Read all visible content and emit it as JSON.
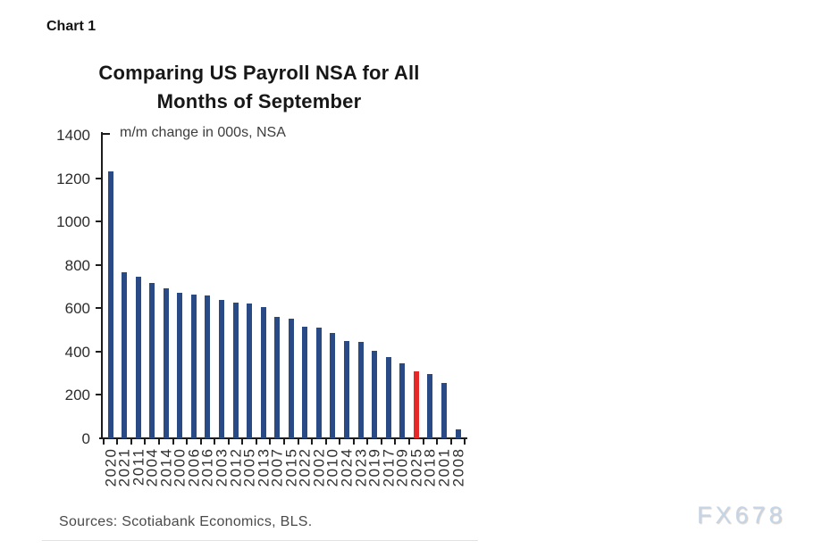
{
  "page": {
    "chart_label": "Chart 1",
    "sources": "Sources: Scotiabank Economics, BLS.",
    "watermark": "FX678"
  },
  "chart_data": {
    "type": "bar",
    "title": "Comparing US Payroll NSA for All Months of September",
    "subtitle": "m/m change in 000s, NSA",
    "xlabel": "",
    "ylabel": "",
    "categories": [
      "2020",
      "2021",
      "2011",
      "2004",
      "2014",
      "2000",
      "2006",
      "2016",
      "2003",
      "2012",
      "2005",
      "2013",
      "2007",
      "2015",
      "2022",
      "2002",
      "2010",
      "2024",
      "2023",
      "2019",
      "2017",
      "2009",
      "2025",
      "2018",
      "2001",
      "2008"
    ],
    "values": [
      1230,
      765,
      745,
      715,
      690,
      670,
      665,
      660,
      640,
      625,
      620,
      605,
      560,
      550,
      515,
      510,
      485,
      450,
      445,
      405,
      375,
      345,
      310,
      295,
      255,
      40
    ],
    "highlight_category": "2025",
    "bar_color": "#2a4a86",
    "highlight_color": "#e62828",
    "ylim": [
      0,
      1400
    ],
    "y_ticks": [
      0,
      200,
      400,
      600,
      800,
      1000,
      1200,
      1400
    ],
    "grid": false,
    "legend": false,
    "sort_order": "descending"
  }
}
